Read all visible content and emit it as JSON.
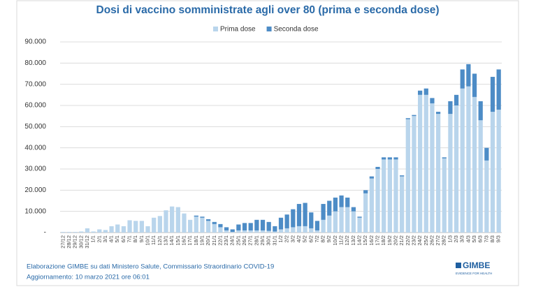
{
  "chart_data": {
    "type": "stacked_bar",
    "title": "Dosi di vaccino somministrate agli over 80 (prima e seconda dose)",
    "categories": [
      "27/12",
      "28/12",
      "29/12",
      "30/12",
      "31/12",
      "1/1",
      "2/1",
      "3/1",
      "4/1",
      "5/1",
      "6/1",
      "7/1",
      "8/1",
      "9/1",
      "10/1",
      "11/1",
      "12/1",
      "13/1",
      "14/1",
      "15/1",
      "16/1",
      "17/1",
      "18/1",
      "19/1",
      "20/1",
      "21/1",
      "22/1",
      "23/1",
      "24/1",
      "25/1",
      "26/1",
      "27/1",
      "28/1",
      "29/1",
      "30/1",
      "31/1",
      "1/2",
      "2/2",
      "3/2",
      "4/2",
      "5/2",
      "6/2",
      "7/2",
      "8/2",
      "9/2",
      "10/2",
      "11/2",
      "12/2",
      "13/2",
      "14/2",
      "15/2",
      "16/2",
      "17/2",
      "18/2",
      "19/2",
      "20/2",
      "21/2",
      "22/2",
      "23/2",
      "24/2",
      "25/2",
      "26/2",
      "27/2",
      "28/2",
      "1/3",
      "2/3",
      "3/3",
      "4/3",
      "5/3",
      "6/3",
      "7/3",
      "8/3",
      "9/3"
    ],
    "series": [
      {
        "name": "Prima dose",
        "color": "#b9d5ec",
        "values": [
          300,
          300,
          300,
          500,
          2000,
          500,
          1500,
          1200,
          3000,
          3800,
          3000,
          5800,
          5500,
          5500,
          3000,
          7000,
          7800,
          10500,
          12300,
          12000,
          9000,
          6000,
          7500,
          7000,
          5500,
          4000,
          2500,
          1000,
          300,
          1000,
          1000,
          1000,
          1000,
          1000,
          800,
          500,
          1500,
          2000,
          2500,
          3000,
          3000,
          2000,
          1000,
          6000,
          8000,
          10000,
          12000,
          12000,
          10000,
          7000,
          18500,
          25500,
          30000,
          34500,
          34500,
          34500,
          26500,
          53500,
          55000,
          65000,
          65000,
          61000,
          56000,
          35000,
          56000,
          60000,
          68000,
          69000,
          64000,
          53000,
          34000,
          57000,
          58000
        ]
      },
      {
        "name": "Seconda dose",
        "color": "#4d8cc6",
        "values": [
          0,
          0,
          0,
          0,
          0,
          0,
          0,
          0,
          0,
          0,
          0,
          0,
          0,
          0,
          0,
          0,
          0,
          0,
          0,
          0,
          0,
          0,
          500,
          500,
          800,
          1000,
          1500,
          1500,
          1200,
          2800,
          3500,
          3500,
          5000,
          5000,
          4200,
          2500,
          5500,
          6500,
          8500,
          10500,
          11000,
          7500,
          4500,
          7500,
          7000,
          6500,
          5500,
          4500,
          2000,
          500,
          1500,
          1000,
          1000,
          1000,
          1000,
          1000,
          500,
          500,
          500,
          2000,
          3000,
          2500,
          1000,
          500,
          6000,
          5000,
          9000,
          10500,
          11000,
          9000,
          6000,
          16500,
          19000
        ]
      }
    ],
    "ylim": [
      0,
      90000
    ],
    "yticks": [
      {
        "value": 0,
        "label": "-"
      },
      {
        "value": 10000,
        "label": "10.000"
      },
      {
        "value": 20000,
        "label": "20.000"
      },
      {
        "value": 30000,
        "label": "30.000"
      },
      {
        "value": 40000,
        "label": "40.000"
      },
      {
        "value": 50000,
        "label": "50.000"
      },
      {
        "value": 60000,
        "label": "60.000"
      },
      {
        "value": 70000,
        "label": "70.000"
      },
      {
        "value": 80000,
        "label": "80.000"
      },
      {
        "value": 90000,
        "label": "90.000"
      }
    ],
    "grid": true,
    "legend": "top",
    "source": "Elaborazione GIMBE su dati Ministero Salute, Commissario Straordinario COVID-19",
    "updated": "Aggiornamento: 10 marzo 2021 ore 06:01",
    "logo": "GIMBE",
    "logo_tagline": "EVIDENCE FOR HEALTH"
  }
}
